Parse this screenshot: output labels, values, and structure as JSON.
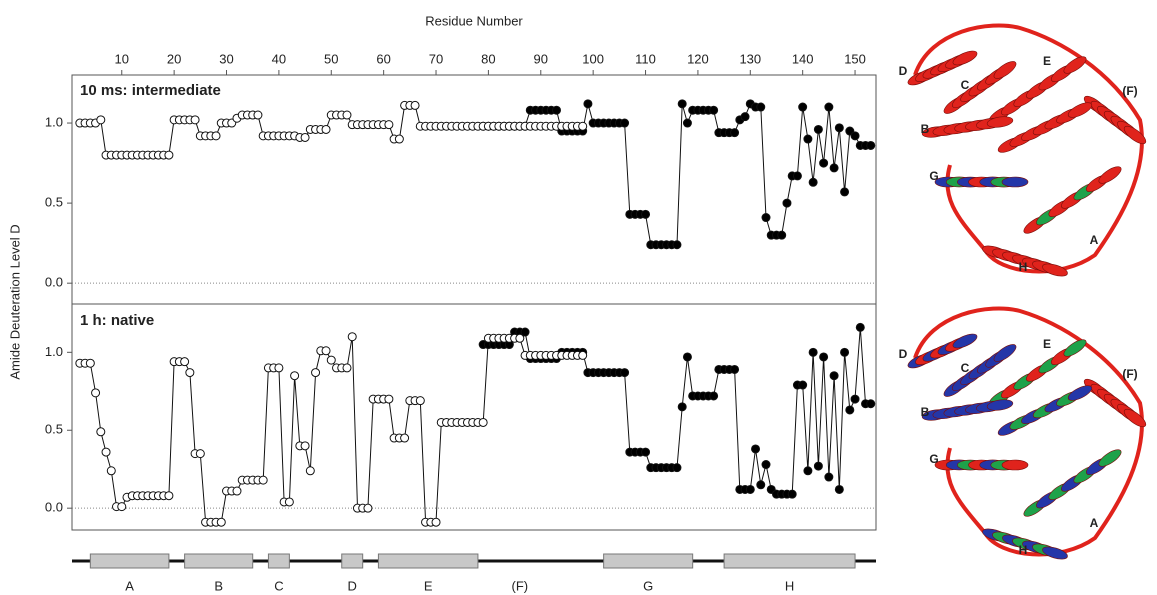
{
  "chart_data": [
    {
      "type": "line",
      "title": "10 ms: intermediate",
      "x_label": "Residue Number",
      "y_label": "Amide Deuteration Level D",
      "xlim": [
        0.5,
        154
      ],
      "xticks": [
        10,
        20,
        30,
        40,
        50,
        60,
        70,
        80,
        90,
        100,
        110,
        120,
        130,
        140,
        150
      ],
      "ylim": [
        -0.13,
        1.3
      ],
      "yticks": [
        {
          "value": 0,
          "label": "0.0"
        },
        {
          "value": 0.5,
          "label": "0.5"
        },
        {
          "value": 1,
          "label": "1.0"
        }
      ],
      "zero_line": true,
      "series": [
        {
          "marker": "filled",
          "color": "#000000",
          "x": [
            79,
            80,
            81,
            82,
            83,
            84,
            85,
            86,
            87,
            88,
            89,
            90,
            91,
            92,
            93,
            94,
            95,
            96,
            97,
            98,
            99,
            100,
            101,
            102,
            103,
            104,
            105,
            106,
            107,
            108,
            109,
            110,
            111,
            112,
            113,
            114,
            115,
            116,
            117,
            118,
            119,
            120,
            121,
            122,
            123,
            124,
            125,
            126,
            127,
            128,
            129,
            130,
            131,
            132,
            133,
            134,
            135,
            136,
            137,
            138,
            139,
            140,
            141,
            142,
            143,
            144,
            145,
            146,
            147,
            148,
            149,
            150,
            151,
            152,
            153
          ],
          "values": [
            0.98,
            0.98,
            0.98,
            0.98,
            0.98,
            0.98,
            0.98,
            0.98,
            0.98,
            1.08,
            1.08,
            1.08,
            1.08,
            1.08,
            1.08,
            0.95,
            0.95,
            0.95,
            0.95,
            0.95,
            1.12,
            1.0,
            1.0,
            1.0,
            1.0,
            1.0,
            1.0,
            1.0,
            0.43,
            0.43,
            0.43,
            0.43,
            0.24,
            0.24,
            0.24,
            0.24,
            0.24,
            0.24,
            1.12,
            1.0,
            1.08,
            1.08,
            1.08,
            1.08,
            1.08,
            0.94,
            0.94,
            0.94,
            0.94,
            1.02,
            1.04,
            1.12,
            1.1,
            1.1,
            0.41,
            0.3,
            0.3,
            0.3,
            0.5,
            0.67,
            0.67,
            1.1,
            0.9,
            0.63,
            0.96,
            0.75,
            1.1,
            0.72,
            0.97,
            0.57,
            0.95,
            0.92,
            0.86,
            0.86,
            0.86
          ]
        },
        {
          "marker": "open",
          "color": "#ffffff",
          "x": [
            2,
            3,
            4,
            5,
            6,
            7,
            8,
            9,
            10,
            11,
            12,
            13,
            14,
            15,
            16,
            17,
            18,
            19,
            20,
            21,
            22,
            23,
            24,
            25,
            26,
            27,
            28,
            29,
            30,
            31,
            32,
            33,
            34,
            35,
            36,
            37,
            38,
            39,
            40,
            41,
            42,
            43,
            44,
            45,
            46,
            47,
            48,
            49,
            50,
            51,
            52,
            53,
            54,
            55,
            56,
            57,
            58,
            59,
            60,
            61,
            62,
            63,
            64,
            65,
            66,
            67,
            68,
            69,
            70,
            71,
            72,
            73,
            74,
            75,
            76,
            77,
            78,
            79,
            80,
            81,
            82,
            83,
            84,
            85,
            86,
            87,
            88,
            89,
            90,
            91,
            92,
            93,
            94,
            95,
            96,
            97,
            98
          ],
          "values": [
            1.0,
            1.0,
            1.0,
            1.0,
            1.02,
            0.8,
            0.8,
            0.8,
            0.8,
            0.8,
            0.8,
            0.8,
            0.8,
            0.8,
            0.8,
            0.8,
            0.8,
            0.8,
            1.02,
            1.02,
            1.02,
            1.02,
            1.02,
            0.92,
            0.92,
            0.92,
            0.92,
            1.0,
            1.0,
            1.0,
            1.03,
            1.05,
            1.05,
            1.05,
            1.05,
            0.92,
            0.92,
            0.92,
            0.92,
            0.92,
            0.92,
            0.92,
            0.91,
            0.91,
            0.96,
            0.96,
            0.96,
            0.96,
            1.05,
            1.05,
            1.05,
            1.05,
            0.99,
            0.99,
            0.99,
            0.99,
            0.99,
            0.99,
            0.99,
            0.99,
            0.9,
            0.9,
            1.11,
            1.11,
            1.11,
            0.98,
            0.98,
            0.98,
            0.98,
            0.98,
            0.98,
            0.98,
            0.98,
            0.98,
            0.98,
            0.98,
            0.98,
            0.98,
            0.98,
            0.98,
            0.98,
            0.98,
            0.98,
            0.98,
            0.98,
            0.98,
            0.98,
            0.98,
            0.98,
            0.98,
            0.98,
            0.98,
            0.98,
            0.98,
            0.98,
            0.98,
            0.98
          ]
        }
      ]
    },
    {
      "type": "line",
      "title": "1 h: native",
      "xlim": [
        0.5,
        154
      ],
      "ylim": [
        -0.14,
        1.31
      ],
      "yticks": [
        {
          "value": 0,
          "label": "0.0"
        },
        {
          "value": 0.5,
          "label": "0.5"
        },
        {
          "value": 1,
          "label": "1.0"
        }
      ],
      "zero_line": true,
      "series": [
        {
          "marker": "filled",
          "color": "#000000",
          "x": [
            79,
            80,
            81,
            82,
            83,
            84,
            85,
            86,
            87,
            88,
            89,
            90,
            91,
            92,
            93,
            94,
            95,
            96,
            97,
            98,
            99,
            100,
            101,
            102,
            103,
            104,
            105,
            106,
            107,
            108,
            109,
            110,
            111,
            112,
            113,
            114,
            115,
            116,
            117,
            118,
            119,
            120,
            121,
            122,
            123,
            124,
            125,
            126,
            127,
            128,
            129,
            130,
            131,
            132,
            133,
            134,
            135,
            136,
            137,
            138,
            139,
            140,
            141,
            142,
            143,
            144,
            145,
            146,
            147,
            148,
            149,
            150,
            151,
            152,
            153
          ],
          "values": [
            1.05,
            1.05,
            1.05,
            1.05,
            1.05,
            1.05,
            1.13,
            1.13,
            1.13,
            0.96,
            0.96,
            0.96,
            0.96,
            0.96,
            0.96,
            1.0,
            1.0,
            1.0,
            1.0,
            1.0,
            0.87,
            0.87,
            0.87,
            0.87,
            0.87,
            0.87,
            0.87,
            0.87,
            0.36,
            0.36,
            0.36,
            0.36,
            0.26,
            0.26,
            0.26,
            0.26,
            0.26,
            0.26,
            0.65,
            0.97,
            0.72,
            0.72,
            0.72,
            0.72,
            0.72,
            0.89,
            0.89,
            0.89,
            0.89,
            0.12,
            0.12,
            0.12,
            0.38,
            0.15,
            0.28,
            0.12,
            0.09,
            0.09,
            0.09,
            0.09,
            0.79,
            0.79,
            0.24,
            1.0,
            0.27,
            0.97,
            0.2,
            0.85,
            0.12,
            1.0,
            0.63,
            0.7,
            1.16,
            0.67,
            0.67
          ]
        },
        {
          "marker": "open",
          "color": "#ffffff",
          "x": [
            2,
            3,
            4,
            5,
            6,
            7,
            8,
            9,
            10,
            11,
            12,
            13,
            14,
            15,
            16,
            17,
            18,
            19,
            20,
            21,
            22,
            23,
            24,
            25,
            26,
            27,
            28,
            29,
            30,
            31,
            32,
            33,
            34,
            35,
            36,
            37,
            38,
            39,
            40,
            41,
            42,
            43,
            44,
            45,
            46,
            47,
            48,
            49,
            50,
            51,
            52,
            53,
            54,
            55,
            56,
            57,
            58,
            59,
            60,
            61,
            62,
            63,
            64,
            65,
            66,
            67,
            68,
            69,
            70,
            71,
            72,
            73,
            74,
            75,
            76,
            77,
            78,
            79,
            80,
            81,
            82,
            83,
            84,
            85,
            86,
            87,
            88,
            89,
            90,
            91,
            92,
            93,
            94,
            95,
            96,
            97,
            98
          ],
          "values": [
            0.93,
            0.93,
            0.93,
            0.74,
            0.49,
            0.36,
            0.24,
            0.01,
            0.01,
            0.07,
            0.08,
            0.08,
            0.08,
            0.08,
            0.08,
            0.08,
            0.08,
            0.08,
            0.94,
            0.94,
            0.94,
            0.87,
            0.35,
            0.35,
            -0.09,
            -0.09,
            -0.09,
            -0.09,
            0.11,
            0.11,
            0.11,
            0.18,
            0.18,
            0.18,
            0.18,
            0.18,
            0.9,
            0.9,
            0.9,
            0.04,
            0.04,
            0.85,
            0.4,
            0.4,
            0.24,
            0.87,
            1.01,
            1.01,
            0.95,
            0.9,
            0.9,
            0.9,
            1.1,
            0,
            0,
            0,
            0.7,
            0.7,
            0.7,
            0.7,
            0.45,
            0.45,
            0.45,
            0.69,
            0.69,
            0.69,
            -0.09,
            -0.09,
            -0.09,
            0.55,
            0.55,
            0.55,
            0.55,
            0.55,
            0.55,
            0.55,
            0.55,
            0.55,
            1.09,
            1.09,
            1.09,
            1.09,
            1.09,
            1.09,
            1.09,
            0.98,
            0.98,
            0.98,
            0.98,
            0.98,
            0.98,
            0.98,
            0.98,
            0.98,
            0.98,
            0.98,
            0.98
          ]
        }
      ]
    }
  ],
  "secondary_structure": {
    "helices": [
      {
        "label": "A",
        "start": 4,
        "end": 19,
        "bar": true
      },
      {
        "label": "B",
        "start": 22,
        "end": 35,
        "bar": true
      },
      {
        "label": "C",
        "start": 38,
        "end": 42,
        "bar": true
      },
      {
        "label": "D",
        "start": 52,
        "end": 56,
        "bar": true
      },
      {
        "label": "E",
        "start": 59,
        "end": 78,
        "bar": true
      },
      {
        "label": "(F)",
        "start": 82,
        "end": 90,
        "bar": false
      },
      {
        "label": "G",
        "start": 102,
        "end": 119,
        "bar": true
      },
      {
        "label": "H",
        "start": 125,
        "end": 150,
        "bar": true
      }
    ]
  },
  "structures": [
    {
      "labels": [
        "D",
        "C",
        "E",
        "(F)",
        "B",
        "G",
        "A",
        "H"
      ]
    },
    {
      "labels": [
        "D",
        "C",
        "E",
        "(F)",
        "B",
        "G",
        "A",
        "H"
      ]
    }
  ]
}
